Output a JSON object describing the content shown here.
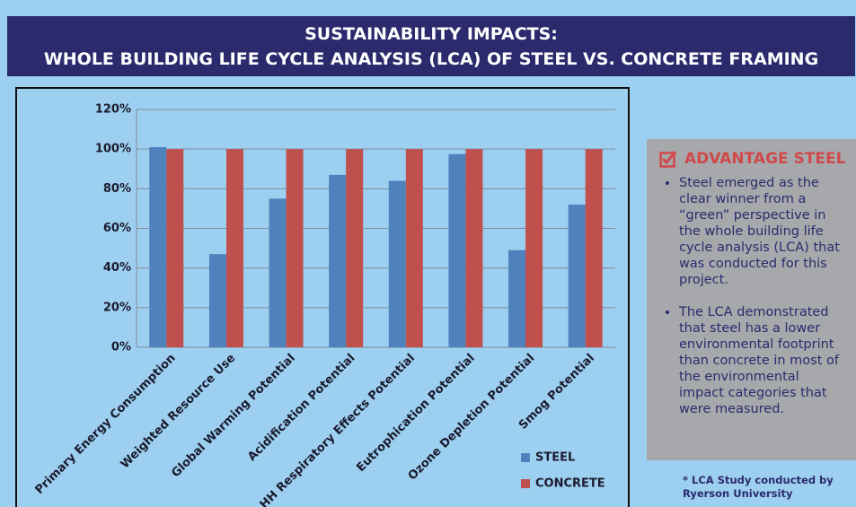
{
  "chart_data": {
    "type": "bar",
    "title": [
      "SUSTAINABILITY IMPACTS:",
      "WHOLE BUILDING LIFE CYCLE ANALYSIS (LCA) OF STEEL VS. CONCRETE FRAMING"
    ],
    "categories": [
      "Primary Energy Consumption",
      "Weighted Resource Use",
      "Global Warming Potential",
      "Acidification Potential",
      "HH Respiratory Effects Potential",
      "Eutrophication Potential",
      "Ozone Depletion Potential",
      "Smog Potential"
    ],
    "series": [
      {
        "name": "STEEL",
        "color": "#4f81bd",
        "values": [
          101,
          47,
          75,
          87,
          84,
          97.5,
          49,
          72
        ]
      },
      {
        "name": "CONCRETE",
        "color": "#c0504d",
        "values": [
          100,
          100,
          100,
          100,
          100,
          100,
          100,
          100
        ]
      }
    ],
    "ylim": [
      0,
      120
    ],
    "yticks": [
      {
        "value": 0,
        "label": "0%"
      },
      {
        "value": 20,
        "label": "20%"
      },
      {
        "value": 40,
        "label": "40%"
      },
      {
        "value": 60,
        "label": "60%"
      },
      {
        "value": 80,
        "label": "80%"
      },
      {
        "value": 100,
        "label": "100%"
      },
      {
        "value": 120,
        "label": "120%"
      }
    ],
    "grid": true,
    "legend": "bottom-right"
  },
  "panel": {
    "heading": "ADVANTAGE STEEL",
    "bullets": [
      "Steel emerged as the clear winner from a “green” perspective in the whole building life cycle analysis (LCA) that was conducted for this project.",
      "The LCA demonstrated that steel has a lower environmental footprint than concrete in most of the environmental impact categories that were measured."
    ],
    "footnote": "* LCA Study conducted by Ryerson University"
  }
}
